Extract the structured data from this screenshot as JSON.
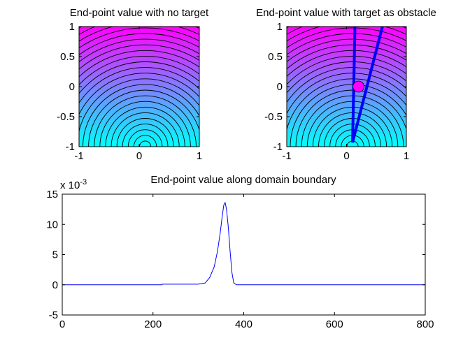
{
  "chart_data": [
    {
      "type": "contour",
      "title": "End-point value with no target",
      "xlim": [
        -1,
        1
      ],
      "ylim": [
        -1,
        1
      ],
      "x_ticks": [
        "-1",
        "0",
        "1"
      ],
      "y_ticks": [
        "1",
        "0.5",
        "0",
        "-0.5",
        "-1"
      ],
      "colormap": [
        "#00ffff",
        "#ff00ff"
      ],
      "source_point": [
        0.1,
        -1
      ]
    },
    {
      "type": "contour",
      "title": "End-point value with target as obstacle",
      "xlim": [
        -1,
        1
      ],
      "ylim": [
        -1,
        1
      ],
      "x_ticks": [
        "-1",
        "0",
        "1"
      ],
      "y_ticks": [
        "1",
        "0.5",
        "0",
        "-0.5",
        "-1"
      ],
      "colormap": [
        "#00ffff",
        "#ff00ff"
      ],
      "source_point": [
        0.1,
        -1
      ],
      "target": {
        "x": 0.2,
        "y": 0,
        "r": 0.09,
        "color": "#ff00ff"
      },
      "boundary_lines": [
        {
          "color": "#0000ff",
          "points": [
            [
              0.1,
              -0.93
            ],
            [
              0.12,
              0.0
            ],
            [
              0.14,
              1.0
            ]
          ]
        },
        {
          "color": "#0000ff",
          "points": [
            [
              0.1,
              -0.93
            ],
            [
              0.6,
              1.0
            ]
          ]
        }
      ]
    },
    {
      "type": "line",
      "title": "End-point value along domain boundary",
      "xlim": [
        0,
        800
      ],
      "ylim": [
        -5,
        15
      ],
      "x_ticks": [
        "0",
        "200",
        "400",
        "600",
        "800"
      ],
      "y_ticks": [
        "15",
        "10",
        "5",
        "0",
        "-5"
      ],
      "y_multiplier": "x 10",
      "y_exponent": "-3",
      "series": [
        {
          "color": "#0000ff",
          "x": [
            0,
            220,
            221,
            300,
            315,
            325,
            335,
            342,
            348,
            352,
            356,
            359,
            362,
            366,
            370,
            374,
            378,
            384,
            800
          ],
          "y": [
            0,
            0,
            0.1,
            0.1,
            0.3,
            1.2,
            3.0,
            5.5,
            8.5,
            11.0,
            13.2,
            13.6,
            12.5,
            9.5,
            5.5,
            2.0,
            0.3,
            0.0,
            0.0
          ]
        }
      ]
    }
  ]
}
